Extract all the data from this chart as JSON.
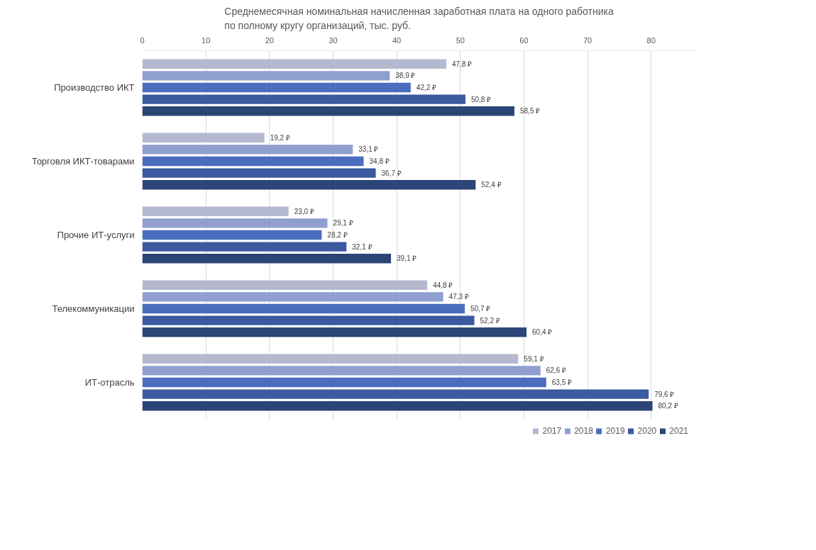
{
  "chart_data": {
    "type": "bar",
    "orientation": "horizontal",
    "title": "Среднемесячная номинальная начисленная заработная плата на одного работника по полному кругу организаций, тыс. руб.",
    "categories": [
      "Производство ИКТ",
      "Торговля ИКТ-товарами",
      "Прочие ИТ-услуги",
      "Телекоммуникации",
      "ИТ-отрасль"
    ],
    "xlim": [
      0,
      87
    ],
    "xticks": [
      0,
      10,
      20,
      30,
      40,
      50,
      60,
      70,
      80
    ],
    "grid": "x",
    "legend": "bottom",
    "series": [
      {
        "name": "2017",
        "color": "#b4b9cf",
        "values": [
          47.8,
          19.2,
          23.0,
          44.8,
          59.1
        ],
        "value_labels": [
          "47,8 ₽",
          "19,2 ₽",
          "23,0 ₽",
          "44,8 ₽",
          "59,1 ₽"
        ]
      },
      {
        "name": "2018",
        "color": "#8f9fd0",
        "values": [
          38.9,
          33.1,
          29.1,
          47.3,
          62.6
        ],
        "value_labels": [
          "38,9 ₽",
          "33,1 ₽",
          "29,1 ₽",
          "47,3 ₽",
          "62,6 ₽"
        ]
      },
      {
        "name": "2019",
        "color": "#4a6ebd",
        "values": [
          42.2,
          34.8,
          28.2,
          50.7,
          63.5
        ],
        "value_labels": [
          "42,2 ₽",
          "34,8 ₽",
          "28,2 ₽",
          "50,7 ₽",
          "63,5 ₽"
        ]
      },
      {
        "name": "2020",
        "color": "#3b5aa0",
        "values": [
          50.8,
          36.7,
          32.1,
          52.2,
          79.6
        ],
        "value_labels": [
          "50,8 ₽",
          "36,7 ₽",
          "32,1 ₽",
          "52,2 ₽",
          "79,6 ₽"
        ]
      },
      {
        "name": "2021",
        "color": "#2c4577",
        "values": [
          58.5,
          52.4,
          39.1,
          60.4,
          80.2
        ],
        "value_labels": [
          "58,5 ₽",
          "52,4 ₽",
          "39,1 ₽",
          "60,4 ₽",
          "80,2 ₽"
        ]
      }
    ]
  }
}
